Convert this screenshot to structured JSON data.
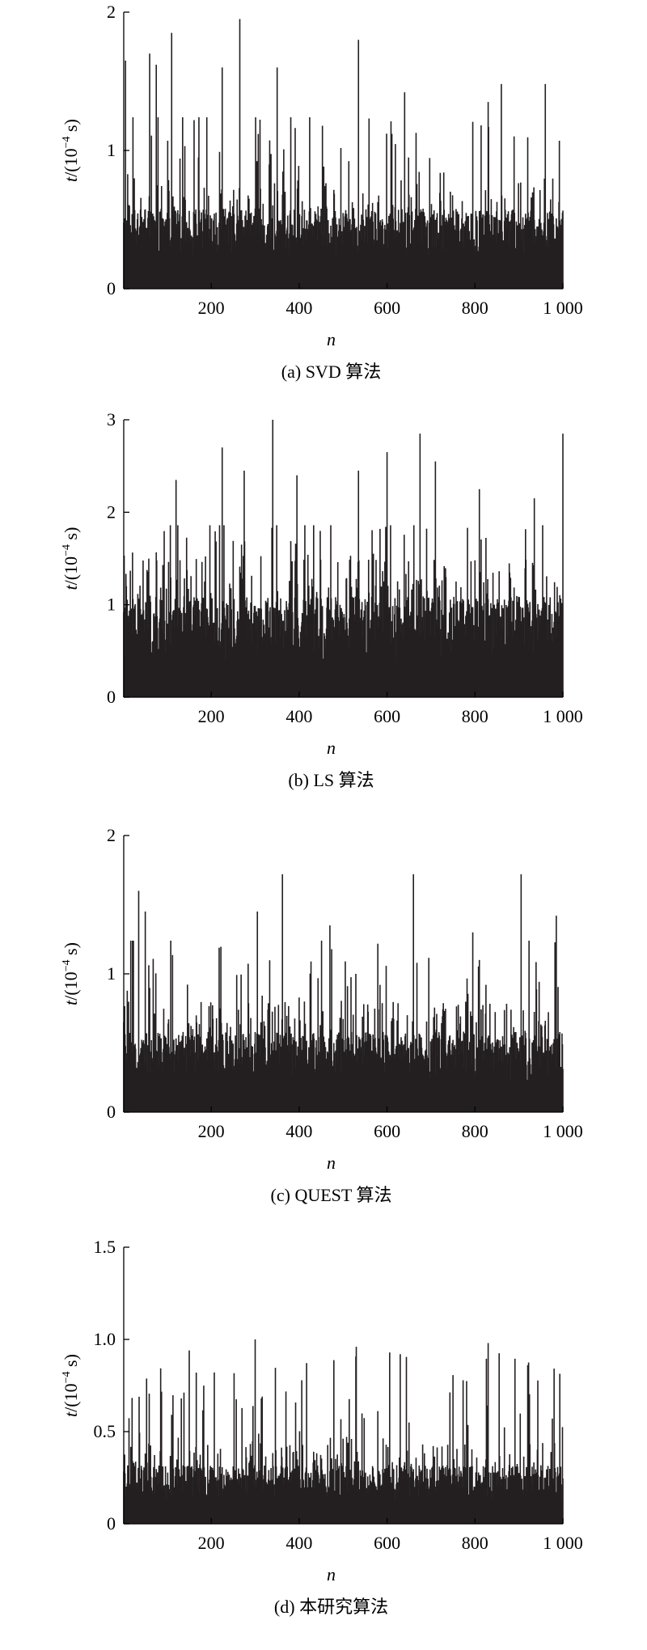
{
  "chart_data": [
    {
      "type": "bar",
      "caption": "(a) SVD 算法",
      "xlabel": "n",
      "ylabel_var": "t",
      "ylabel_unit": "/(10",
      "ylabel_exp": "−4",
      "ylabel_tail": " s)",
      "xlim": [
        1,
        1000
      ],
      "ylim": [
        0,
        2
      ],
      "xticks": [
        200,
        400,
        600,
        800,
        1000
      ],
      "xtick_labels": [
        "200",
        "400",
        "600",
        "800",
        "1 000"
      ],
      "yticks": [
        0,
        1,
        2
      ],
      "ytick_labels": [
        "0",
        "1",
        "2"
      ],
      "series_color": "#231f20",
      "n_points": 1000,
      "baseline_mean": 0.4,
      "peaks": [
        {
          "x": 5,
          "y": 1.65
        },
        {
          "x": 60,
          "y": 1.7
        },
        {
          "x": 75,
          "y": 1.62
        },
        {
          "x": 110,
          "y": 1.85
        },
        {
          "x": 225,
          "y": 1.6
        },
        {
          "x": 265,
          "y": 1.95
        },
        {
          "x": 350,
          "y": 1.6
        },
        {
          "x": 535,
          "y": 1.8
        },
        {
          "x": 640,
          "y": 1.42
        },
        {
          "x": 830,
          "y": 1.35
        },
        {
          "x": 860,
          "y": 1.48
        },
        {
          "x": 960,
          "y": 1.48
        }
      ],
      "grid": false
    },
    {
      "type": "bar",
      "caption": "(b) LS 算法",
      "xlabel": "n",
      "ylabel_var": "t",
      "ylabel_unit": "/(10",
      "ylabel_exp": "−4",
      "ylabel_tail": " s)",
      "xlim": [
        1,
        1000
      ],
      "ylim": [
        0,
        3
      ],
      "xticks": [
        200,
        400,
        600,
        800,
        1000
      ],
      "xtick_labels": [
        "200",
        "400",
        "600",
        "800",
        "1 000"
      ],
      "yticks": [
        0,
        1,
        2,
        3
      ],
      "ytick_labels": [
        "0",
        "1",
        "2",
        "3"
      ],
      "series_color": "#231f20",
      "n_points": 1000,
      "baseline_mean": 0.75,
      "peaks": [
        {
          "x": 120,
          "y": 2.35
        },
        {
          "x": 225,
          "y": 2.7
        },
        {
          "x": 275,
          "y": 2.45
        },
        {
          "x": 340,
          "y": 3.0
        },
        {
          "x": 395,
          "y": 2.4
        },
        {
          "x": 535,
          "y": 2.45
        },
        {
          "x": 600,
          "y": 2.65
        },
        {
          "x": 675,
          "y": 2.85
        },
        {
          "x": 710,
          "y": 2.55
        },
        {
          "x": 810,
          "y": 2.25
        },
        {
          "x": 935,
          "y": 2.15
        },
        {
          "x": 1000,
          "y": 2.85
        }
      ],
      "grid": false
    },
    {
      "type": "bar",
      "caption": "(c) QUEST 算法",
      "xlabel": "n",
      "ylabel_var": "t",
      "ylabel_unit": "/(10",
      "ylabel_exp": "−4",
      "ylabel_tail": " s)",
      "xlim": [
        1,
        1000
      ],
      "ylim": [
        0,
        2
      ],
      "xticks": [
        200,
        400,
        600,
        800,
        1000
      ],
      "xtick_labels": [
        "200",
        "400",
        "600",
        "800",
        "1 000"
      ],
      "yticks": [
        0,
        1,
        2
      ],
      "ytick_labels": [
        "0",
        "1",
        "2"
      ],
      "series_color": "#231f20",
      "n_points": 1000,
      "baseline_mean": 0.4,
      "peaks": [
        {
          "x": 35,
          "y": 1.6
        },
        {
          "x": 50,
          "y": 1.45
        },
        {
          "x": 305,
          "y": 1.45
        },
        {
          "x": 362,
          "y": 1.72
        },
        {
          "x": 470,
          "y": 1.35
        },
        {
          "x": 660,
          "y": 1.72
        },
        {
          "x": 795,
          "y": 1.3
        },
        {
          "x": 905,
          "y": 1.72
        },
        {
          "x": 985,
          "y": 1.42
        }
      ],
      "grid": false
    },
    {
      "type": "bar",
      "caption": "(d) 本研究算法",
      "xlabel": "n",
      "ylabel_var": "t",
      "ylabel_unit": "/(10",
      "ylabel_exp": "−4",
      "ylabel_tail": " s)",
      "xlim": [
        1,
        1000
      ],
      "ylim": [
        0,
        1.5
      ],
      "xticks": [
        200,
        400,
        600,
        800,
        1000
      ],
      "xtick_labels": [
        "200",
        "400",
        "600",
        "800",
        "1 000"
      ],
      "yticks": [
        0,
        0.5,
        1.0,
        1.5
      ],
      "ytick_labels": [
        "0",
        "0.5",
        "1.0",
        "1.5"
      ],
      "series_color": "#231f20",
      "n_points": 1000,
      "baseline_mean": 0.22,
      "peaks": [
        {
          "x": 150,
          "y": 0.94
        },
        {
          "x": 300,
          "y": 1.0
        },
        {
          "x": 530,
          "y": 0.96
        },
        {
          "x": 630,
          "y": 0.92
        },
        {
          "x": 830,
          "y": 0.98
        },
        {
          "x": 920,
          "y": 0.86
        }
      ],
      "grid": false
    }
  ]
}
